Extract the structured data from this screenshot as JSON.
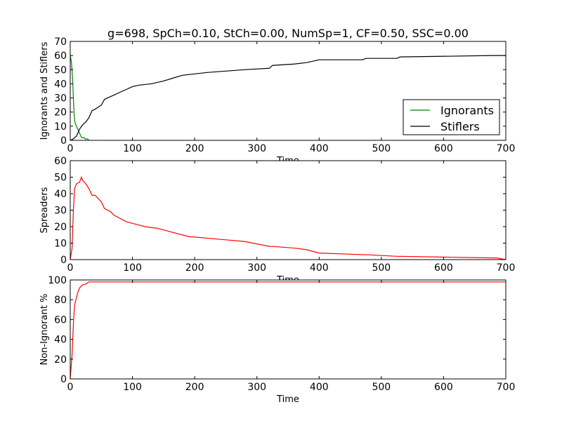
{
  "chart_data": [
    {
      "type": "line",
      "title": "g=698, SpCh=0.10, StCh=0.00, NumSp=1, CF=0.50, SSC=0.00",
      "xlabel": "Time",
      "ylabel": "Ignorants and Stiflers",
      "xlim": [
        0,
        700
      ],
      "ylim": [
        0,
        70
      ],
      "xticks": [
        0,
        100,
        200,
        300,
        400,
        500,
        600,
        700
      ],
      "yticks": [
        0,
        10,
        20,
        30,
        40,
        50,
        60,
        70
      ],
      "legend": "center-right",
      "grid": false,
      "series": [
        {
          "name": "Ignorants",
          "color": "#008000",
          "x": [
            0,
            2,
            4,
            5,
            6,
            7,
            8,
            10,
            12,
            14,
            16,
            18,
            20,
            22,
            24,
            26,
            28,
            30
          ],
          "y": [
            60,
            55,
            42,
            30,
            20,
            14,
            12,
            10,
            8,
            6,
            4,
            2,
            2,
            2,
            1,
            1,
            1,
            0
          ]
        },
        {
          "name": "Stiflers",
          "color": "#000000",
          "x": [
            0,
            5,
            10,
            15,
            20,
            25,
            30,
            35,
            40,
            50,
            55,
            60,
            70,
            80,
            90,
            100,
            110,
            130,
            150,
            165,
            180,
            200,
            220,
            250,
            280,
            320,
            325,
            360,
            380,
            400,
            470,
            475,
            525,
            530,
            680,
            700
          ],
          "y": [
            0,
            1,
            3,
            8,
            11,
            13,
            16,
            21,
            22,
            25,
            29,
            30,
            32,
            34,
            36,
            38,
            39,
            40,
            42,
            44,
            46,
            47,
            48,
            49,
            50,
            51,
            53,
            54,
            55,
            57,
            57,
            58,
            58,
            59,
            60,
            60
          ]
        }
      ]
    },
    {
      "type": "line",
      "xlabel": "Time",
      "ylabel": "Spreaders",
      "xlim": [
        0,
        700
      ],
      "ylim": [
        0,
        60
      ],
      "xticks": [
        0,
        100,
        200,
        300,
        400,
        500,
        600,
        700
      ],
      "yticks": [
        0,
        10,
        20,
        30,
        40,
        50,
        60
      ],
      "grid": false,
      "series": [
        {
          "color": "#ff0000",
          "x": [
            0,
            3,
            5,
            7,
            10,
            15,
            18,
            20,
            25,
            30,
            35,
            40,
            50,
            55,
            65,
            70,
            80,
            90,
            100,
            110,
            120,
            140,
            150,
            160,
            170,
            180,
            190,
            220,
            250,
            280,
            320,
            325,
            360,
            380,
            390,
            400,
            470,
            475,
            525,
            530,
            680,
            685,
            700
          ],
          "y": [
            0,
            7,
            30,
            43,
            46,
            47,
            50,
            48,
            46,
            43,
            39,
            39,
            35,
            31,
            29,
            27,
            25,
            23,
            22,
            21,
            20,
            19,
            18,
            17,
            16,
            15,
            14,
            13,
            12,
            11,
            8,
            8,
            7,
            6,
            5,
            4,
            3,
            3,
            2,
            2,
            1,
            1,
            0
          ]
        }
      ]
    },
    {
      "type": "line",
      "xlabel": "Time",
      "ylabel": "Non-Ignorant %",
      "xlim": [
        0,
        700
      ],
      "ylim": [
        0,
        100
      ],
      "xticks": [
        0,
        100,
        200,
        300,
        400,
        500,
        600,
        700
      ],
      "yticks": [
        0,
        20,
        40,
        60,
        80,
        100
      ],
      "grid": false,
      "series": [
        {
          "color": "#ff0000",
          "x": [
            0,
            3,
            5,
            7,
            10,
            12,
            15,
            18,
            20,
            25,
            30,
            35,
            700
          ],
          "y": [
            0,
            25,
            55,
            75,
            82,
            87,
            92,
            94,
            95,
            96,
            98,
            98,
            98
          ]
        }
      ]
    }
  ]
}
